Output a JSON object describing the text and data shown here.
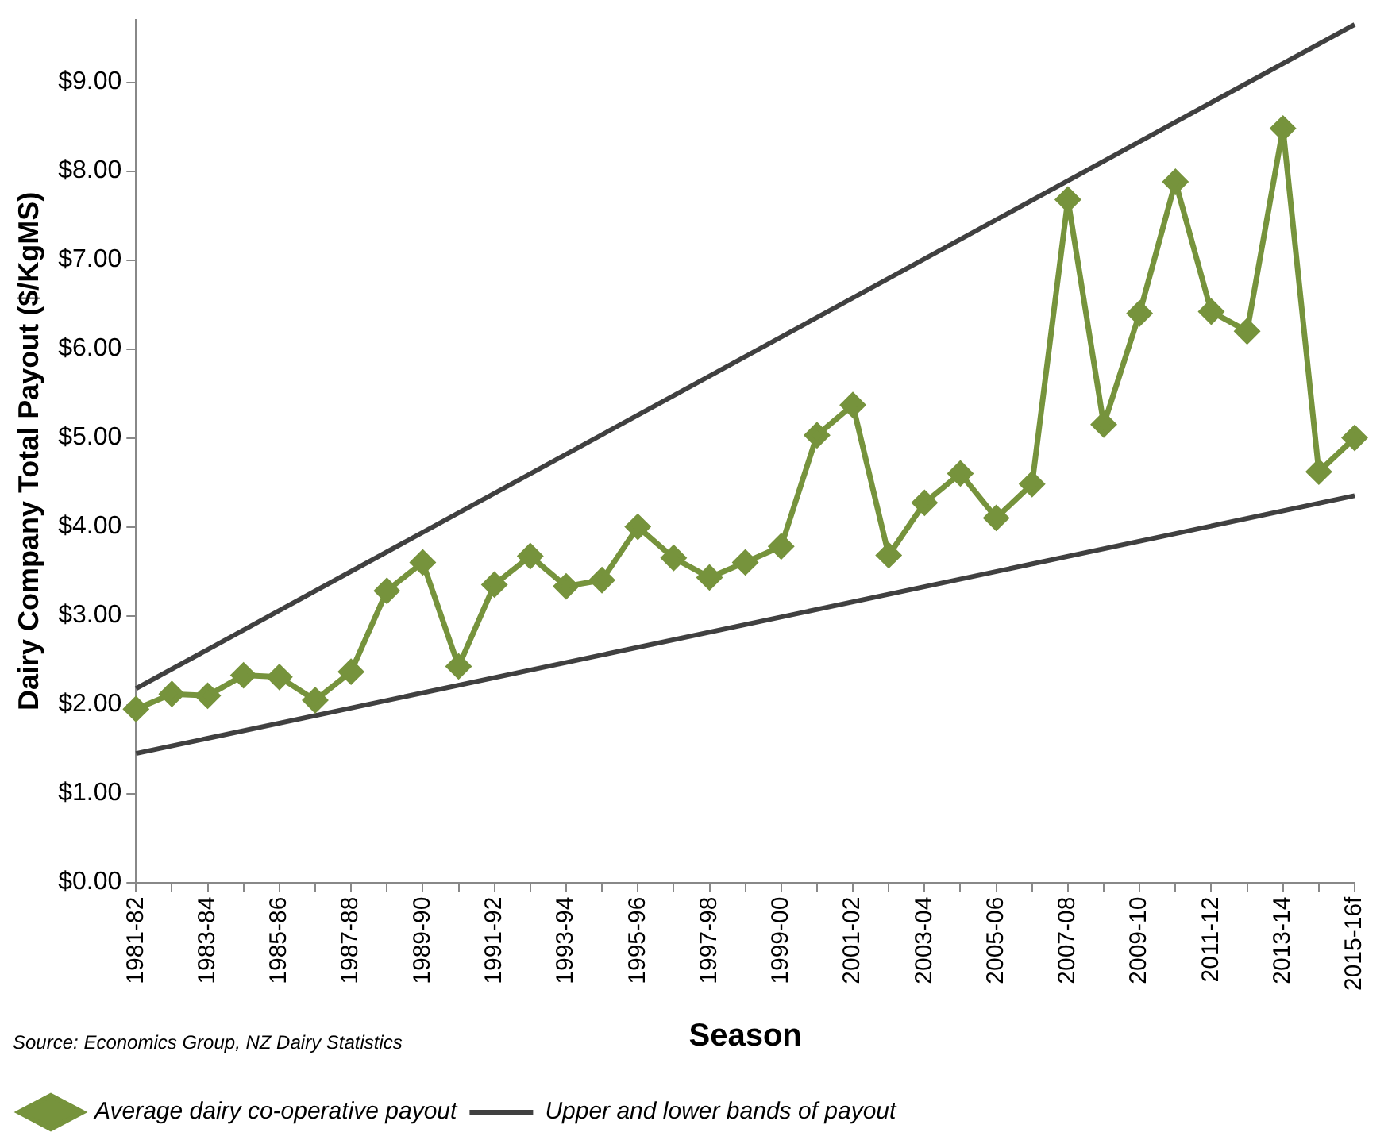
{
  "chart_data": {
    "type": "line",
    "xlabel": "Season",
    "ylabel": "Dairy Company Total Payout ($/KgMS)",
    "categories": [
      "1981-82",
      null,
      "1983-84",
      null,
      "1985-86",
      null,
      "1987-88",
      null,
      "1989-90",
      null,
      "1991-92",
      null,
      "1993-94",
      null,
      "1995-96",
      null,
      "1997-98",
      null,
      "1999-00",
      null,
      "2001-02",
      null,
      "2003-04",
      null,
      "2005-06",
      null,
      "2007-08",
      null,
      "2009-10",
      null,
      "2011-12",
      null,
      "2013-14",
      null,
      "2015-16f"
    ],
    "series": [
      {
        "name": "Average dairy co-operative payout",
        "color": "#76933c",
        "marker": "diamond",
        "values": [
          1.95,
          2.12,
          2.1,
          2.33,
          2.31,
          2.05,
          2.37,
          3.28,
          3.6,
          2.43,
          3.35,
          3.67,
          3.33,
          3.4,
          4.0,
          3.65,
          3.43,
          3.6,
          3.78,
          5.03,
          5.37,
          3.68,
          4.27,
          4.6,
          4.1,
          4.48,
          7.68,
          5.15,
          6.4,
          7.88,
          6.42,
          6.2,
          8.48,
          4.62,
          5.0
        ]
      },
      {
        "name": "Upper and lower bands of payout",
        "type": "line",
        "color": "#404040",
        "marker": "none",
        "x": [
          "1981-82",
          "2015-16f"
        ],
        "values": [
          2.18,
          9.65
        ]
      },
      {
        "type": "line",
        "color": "#404040",
        "marker": "none",
        "x": [
          "1981-82",
          "2015-16f"
        ],
        "values": [
          1.45,
          4.35
        ]
      }
    ],
    "ylim": [
      0,
      9.7
    ],
    "yticks": [
      {
        "value": 0,
        "label": "$0.00"
      },
      {
        "value": 1,
        "label": "$1.00"
      },
      {
        "value": 2,
        "label": "$2.00"
      },
      {
        "value": 3,
        "label": "$3.00"
      },
      {
        "value": 4,
        "label": "$4.00"
      },
      {
        "value": 5,
        "label": "$5.00"
      },
      {
        "value": 6,
        "label": "$6.00"
      },
      {
        "value": 7,
        "label": "$7.00"
      },
      {
        "value": 8,
        "label": "$8.00"
      },
      {
        "value": 9,
        "label": "$9.00"
      }
    ],
    "grid": false,
    "legend": "bottom left",
    "annotations": [
      "Source: Economics Group, NZ Dairy Statistics"
    ]
  }
}
